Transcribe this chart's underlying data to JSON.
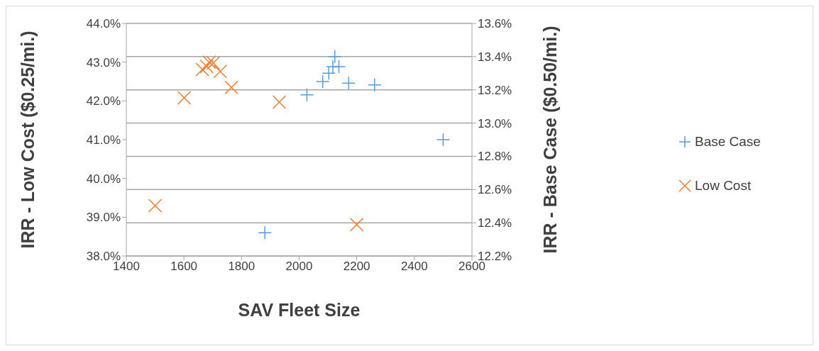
{
  "chart_data": {
    "type": "scatter",
    "xlabel": "SAV Fleet Size",
    "ylabel": "IRR - Low Cost ($0.25/mi.)",
    "y2label": "IRR - Base Case ($0.50/mi.)",
    "xlim": [
      1400,
      2600
    ],
    "xticks": [
      1400,
      1600,
      1800,
      2000,
      2200,
      2400,
      2600
    ],
    "ylim": [
      38,
      44
    ],
    "yticks": [
      {
        "value": 38,
        "label": "38.0%"
      },
      {
        "value": 39,
        "label": "39.0%"
      },
      {
        "value": 40,
        "label": "40.0%"
      },
      {
        "value": 41,
        "label": "41.0%"
      },
      {
        "value": 42,
        "label": "42.0%"
      },
      {
        "value": 43,
        "label": "43.0%"
      },
      {
        "value": 44,
        "label": "44.0%"
      }
    ],
    "y2lim": [
      12.2,
      13.6
    ],
    "y2ticks": [
      {
        "value": 12.2,
        "label": "12.2%"
      },
      {
        "value": 12.4,
        "label": "12.4%"
      },
      {
        "value": 12.6,
        "label": "12.6%"
      },
      {
        "value": 12.8,
        "label": "12.8%"
      },
      {
        "value": 13.0,
        "label": "13.0%"
      },
      {
        "value": 13.2,
        "label": "13.2%"
      },
      {
        "value": 13.4,
        "label": "13.4%"
      },
      {
        "value": 13.6,
        "label": "13.6%"
      }
    ],
    "grid": "y",
    "legend": "right",
    "series": [
      {
        "name": "Base Case",
        "color": "#5b9bd5",
        "axis": "y2",
        "marker": "plus",
        "x": [
          1881,
          2027,
          2082,
          2103,
          2117,
          2124,
          2138,
          2172,
          2262,
          2500
        ],
        "values": [
          12.34,
          13.17,
          13.25,
          13.3,
          13.34,
          13.4,
          13.34,
          13.24,
          13.23,
          12.9
        ]
      },
      {
        "name": "Low Cost",
        "color": "#ed7d31",
        "marker": "cross",
        "x": [
          1500,
          1601,
          1664,
          1679,
          1688,
          1702,
          1726,
          1765,
          1931,
          2200
        ],
        "values": [
          39.3,
          42.08,
          42.81,
          42.89,
          43.0,
          42.98,
          42.76,
          42.35,
          41.97,
          38.81
        ]
      }
    ]
  }
}
